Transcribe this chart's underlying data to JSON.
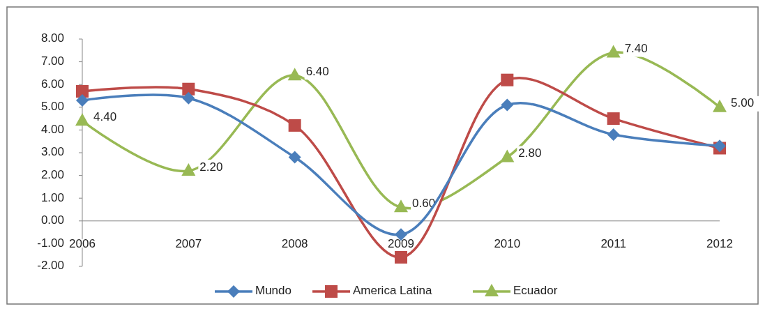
{
  "chart_data": {
    "type": "line",
    "categories": [
      "2006",
      "2007",
      "2008",
      "2009",
      "2010",
      "2011",
      "2012"
    ],
    "ylim": [
      -2,
      8
    ],
    "yticks": [
      {
        "value": -2,
        "label": "-2.00"
      },
      {
        "value": -1,
        "label": "-1.00"
      },
      {
        "value": 0,
        "label": "0.00"
      },
      {
        "value": 1,
        "label": "1.00"
      },
      {
        "value": 2,
        "label": "2.00"
      },
      {
        "value": 3,
        "label": "3.00"
      },
      {
        "value": 4,
        "label": "4.00"
      },
      {
        "value": 5,
        "label": "5.00"
      },
      {
        "value": 6,
        "label": "6.00"
      },
      {
        "value": 7,
        "label": "7.00"
      },
      {
        "value": 8,
        "label": "8.00"
      }
    ],
    "grid": false,
    "legend": "bottom",
    "series": [
      {
        "name": "Mundo",
        "color": "#4a7ebb",
        "marker": "diamond",
        "values": [
          5.3,
          5.4,
          2.8,
          -0.6,
          5.1,
          3.8,
          3.3
        ]
      },
      {
        "name": "America Latina",
        "color": "#be4b48",
        "marker": "square",
        "values": [
          5.7,
          5.8,
          4.2,
          -1.6,
          6.2,
          4.5,
          3.2
        ]
      },
      {
        "name": "Ecuador",
        "color": "#98b954",
        "marker": "triangle",
        "values": [
          4.4,
          2.2,
          6.4,
          0.6,
          2.8,
          7.4,
          5.0
        ],
        "value_labels": [
          "4.40",
          "2.20",
          "6.40",
          "0.60",
          "2.80",
          "7.40",
          "5.00"
        ]
      }
    ]
  }
}
